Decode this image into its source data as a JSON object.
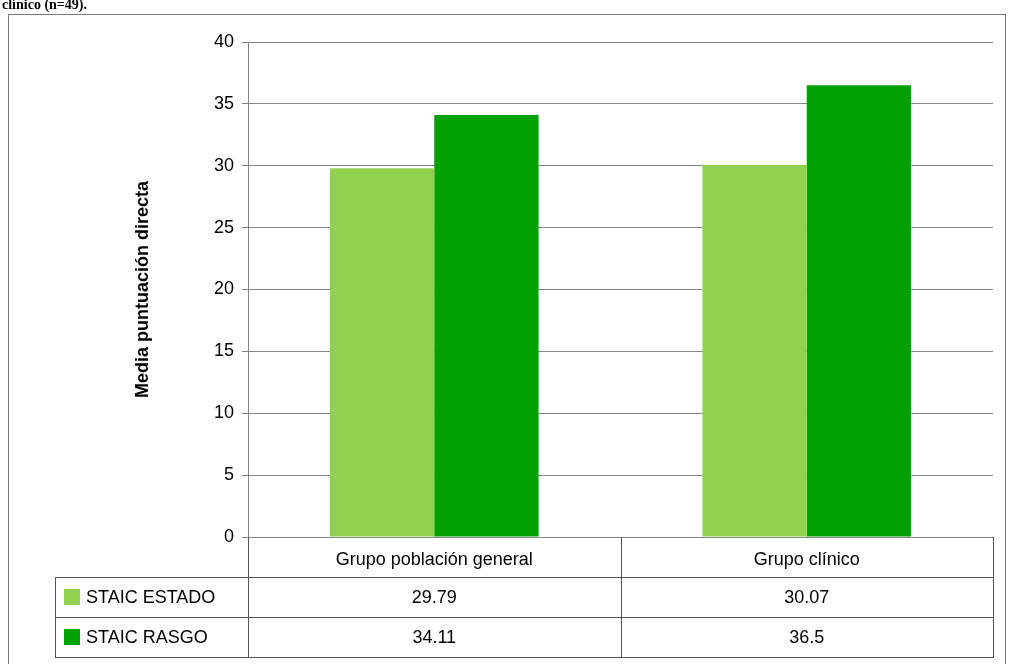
{
  "chart_data": {
    "type": "bar",
    "ylabel": "Media puntuación directa",
    "annotations": [
      "clínico (n=49)."
    ],
    "categories": [
      "Grupo población general",
      "Grupo clínico"
    ],
    "series": [
      {
        "name": "STAIC ESTADO",
        "color": "#92d050",
        "values": [
          29.79,
          30.07
        ]
      },
      {
        "name": "STAIC RASGO",
        "color": "#00a000",
        "values": [
          34.11,
          36.5
        ]
      }
    ],
    "ylim": [
      0,
      40
    ],
    "yticks": [
      0,
      5,
      10,
      15,
      20,
      25,
      30,
      35,
      40
    ],
    "grid": "y",
    "legend": "bottom",
    "data_labels": true
  }
}
